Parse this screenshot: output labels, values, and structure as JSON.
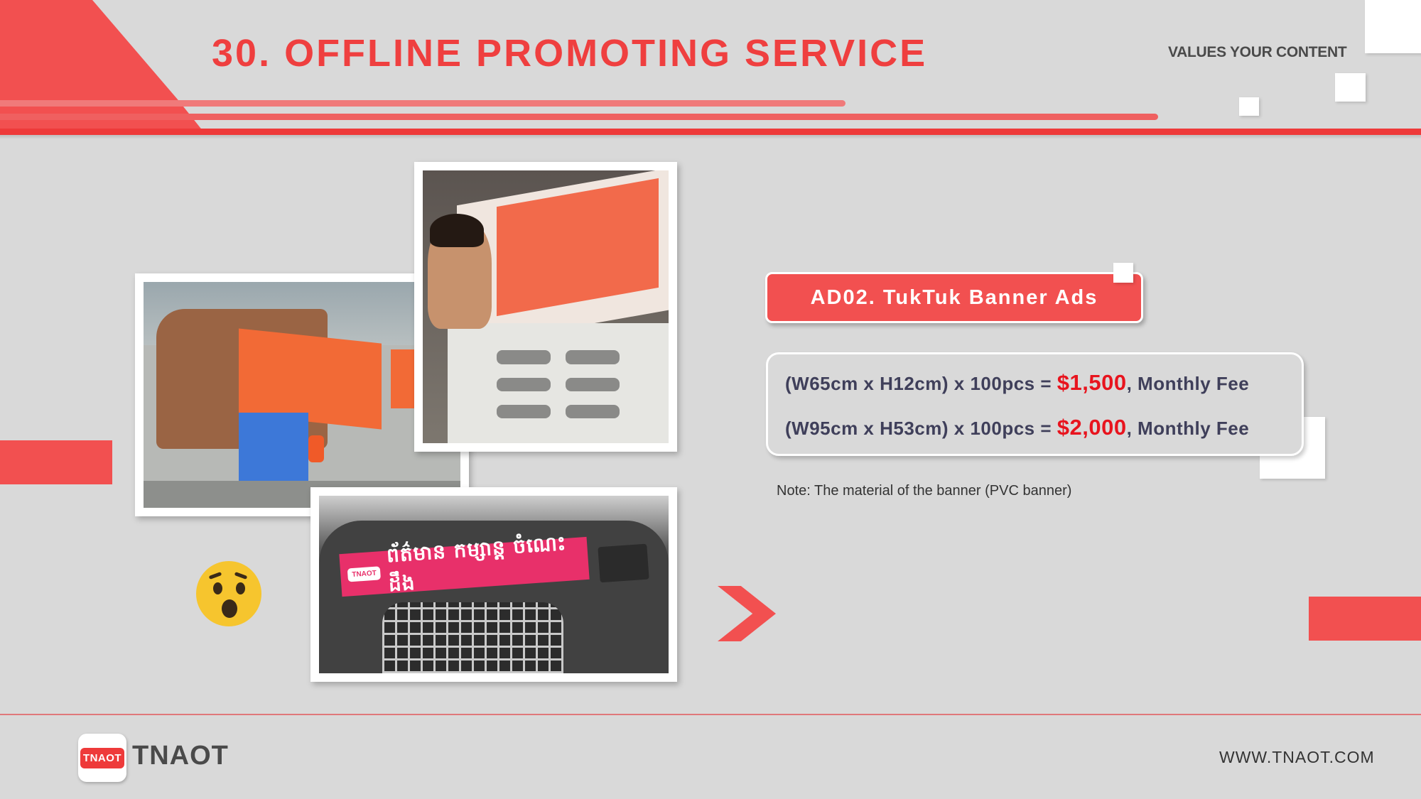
{
  "header": {
    "title": "30. OFFLINE PROMOTING SERVICE",
    "tagline": "VALUES YOUR CONTENT"
  },
  "ad": {
    "badge_label": "AD02. TukTuk Banner Ads",
    "prices": [
      {
        "spec": "(W65cm x H12cm) x 100pcs =",
        "amount": "$1,500",
        "suffix": ", Monthly Fee"
      },
      {
        "spec": "(W95cm x H53cm) x 100pcs =",
        "amount": "$2,000",
        "suffix": ", Monthly Fee"
      }
    ],
    "note": "Note: The material of the banner (PVC banner)"
  },
  "photos": {
    "banner_text": "ព័ត៌មាន កម្សាន្ត ចំណេះដឹង",
    "banner_logo": "TNAOT"
  },
  "footer": {
    "logo_badge": "TNAOT",
    "brand": "TNAOT",
    "website": "WWW.TNAOT.COM"
  },
  "icons": {
    "emoji": "surprised-face-emoji",
    "arrow": "chevron-right-icon"
  },
  "colors": {
    "accent": "#f25050",
    "price": "#e8141e",
    "background": "#d9d9d9"
  }
}
